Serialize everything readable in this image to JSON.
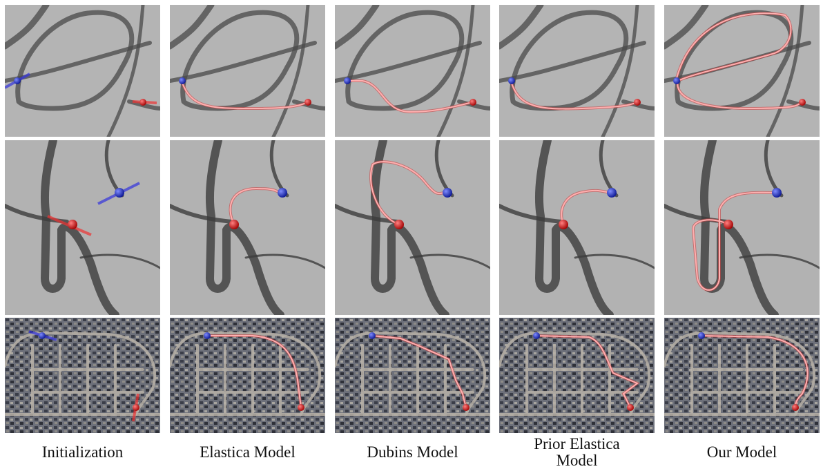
{
  "columns": [
    {
      "label": "Initialization"
    },
    {
      "label": "Elastica Model"
    },
    {
      "label": "Dubins Model"
    },
    {
      "label": "Prior Elastica Model"
    },
    {
      "label": "Our Model"
    }
  ]
}
